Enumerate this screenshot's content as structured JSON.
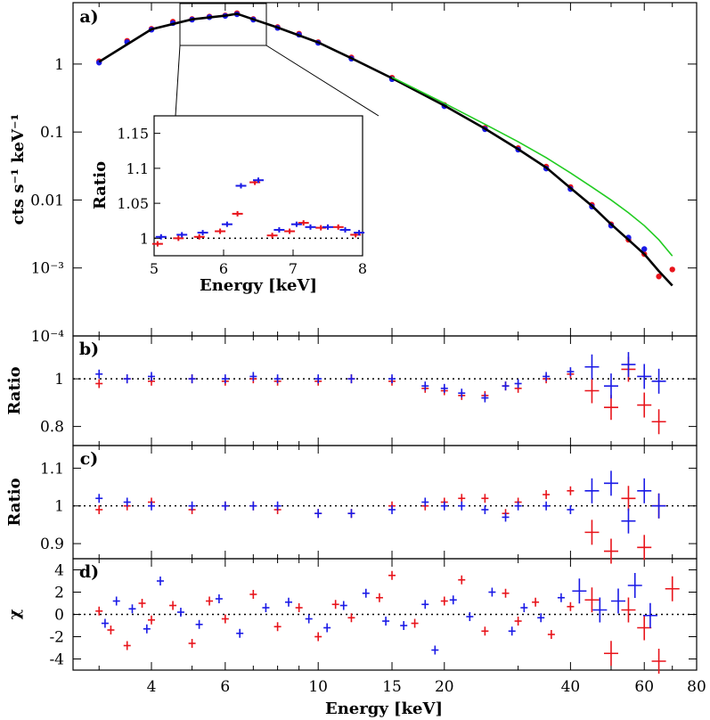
{
  "chart_data": [
    {
      "panel": "a)",
      "type": "scatter",
      "xlabel": "",
      "ylabel": "cts s⁻¹ keV⁻¹",
      "xscale": "log",
      "yscale": "log",
      "xlim": [
        2.6,
        80
      ],
      "ylim": [
        0.0001,
        8
      ],
      "ytick_labels": [
        "1",
        "0.1",
        "0.01",
        "10⁻³",
        "10⁻⁴"
      ],
      "ytick_values": [
        1,
        0.1,
        0.01,
        0.001,
        0.0001
      ],
      "series": [
        {
          "color": "#e8141b",
          "x": [
            3,
            3.5,
            4,
            4.5,
            5,
            5.5,
            6,
            6.4,
            7,
            8,
            9,
            10,
            12,
            15,
            20,
            25,
            30,
            35,
            40,
            45,
            50,
            55,
            60,
            65,
            70
          ],
          "y": [
            1.1,
            2.2,
            3.3,
            4.2,
            4.6,
            5.0,
            5.2,
            5.6,
            4.6,
            3.5,
            2.8,
            2.1,
            1.25,
            0.63,
            0.25,
            0.115,
            0.058,
            0.031,
            0.0155,
            0.0085,
            0.0044,
            0.0026,
            0.0016,
            0.00075,
            0.00095
          ]
        },
        {
          "color": "#1a1ae6",
          "x": [
            3,
            3.5,
            4,
            4.5,
            5,
            5.5,
            6,
            6.4,
            7,
            8,
            9,
            10,
            12,
            15,
            20,
            25,
            30,
            35,
            40,
            45,
            50,
            55,
            60
          ],
          "y": [
            1.05,
            2.1,
            3.2,
            4.0,
            4.5,
            4.9,
            5.1,
            5.4,
            4.5,
            3.4,
            2.7,
            2.05,
            1.2,
            0.6,
            0.24,
            0.11,
            0.055,
            0.029,
            0.0145,
            0.008,
            0.0042,
            0.0028,
            0.0019
          ]
        },
        {
          "color": "#000000",
          "kind": "model",
          "x": [
            3,
            4,
            5,
            6,
            6.4,
            7,
            8,
            10,
            12,
            15,
            20,
            25,
            30,
            35,
            40,
            45,
            50,
            55,
            60,
            65,
            70
          ],
          "y": [
            1.08,
            3.25,
            4.55,
            5.15,
            5.5,
            4.55,
            3.45,
            2.08,
            1.22,
            0.62,
            0.245,
            0.112,
            0.056,
            0.03,
            0.015,
            0.0082,
            0.0044,
            0.0026,
            0.0016,
            0.0009,
            0.00055
          ]
        },
        {
          "color": "#22cc22",
          "kind": "model",
          "x": [
            15,
            20,
            25,
            30,
            35,
            40,
            45,
            50,
            55,
            60,
            65,
            70
          ],
          "y": [
            0.64,
            0.265,
            0.13,
            0.072,
            0.042,
            0.025,
            0.0155,
            0.01,
            0.0065,
            0.0042,
            0.0026,
            0.0015
          ]
        }
      ]
    },
    {
      "panel": "inset",
      "type": "scatter",
      "xlabel": "Energy [keV]",
      "ylabel": "Ratio",
      "xlim": [
        5,
        8
      ],
      "ylim": [
        0.975,
        1.175
      ],
      "xtick_labels": [
        "5",
        "6",
        "7",
        "8"
      ],
      "ytick_labels": [
        "1",
        "1.05",
        "1.1",
        "1.15"
      ],
      "reference_line": 1,
      "series": [
        {
          "color": "#e8141b",
          "x": [
            5.05,
            5.35,
            5.65,
            5.95,
            6.2,
            6.45,
            6.7,
            6.95,
            7.15,
            7.4,
            7.65,
            7.9
          ],
          "y": [
            0.992,
            1.0,
            1.002,
            1.01,
            1.035,
            1.08,
            1.004,
            1.01,
            1.022,
            1.015,
            1.016,
            1.005
          ]
        },
        {
          "color": "#1a1ae6",
          "x": [
            5.1,
            5.4,
            5.7,
            6.05,
            6.25,
            6.5,
            6.8,
            7.05,
            7.25,
            7.5,
            7.75,
            7.95
          ],
          "y": [
            1.002,
            1.005,
            1.008,
            1.02,
            1.075,
            1.083,
            1.012,
            1.02,
            1.016,
            1.016,
            1.012,
            1.008
          ]
        }
      ]
    },
    {
      "panel": "b)",
      "type": "scatter",
      "xlabel": "",
      "ylabel": "Ratio",
      "xscale": "log",
      "xlim": [
        2.6,
        80
      ],
      "ylim": [
        0.72,
        1.18
      ],
      "ytick_labels": [
        "1",
        "0.8"
      ],
      "ytick_values": [
        1,
        0.8
      ],
      "reference_line": 1,
      "series": [
        {
          "color": "#e8141b",
          "x": [
            3,
            3.5,
            4,
            5,
            6,
            7,
            8,
            10,
            12,
            15,
            18,
            20,
            22,
            25,
            28,
            30,
            35,
            40,
            45,
            50,
            55,
            60,
            65
          ],
          "y": [
            0.98,
            1.0,
            0.99,
            1.0,
            0.99,
            1.0,
            0.99,
            0.99,
            1.0,
            0.99,
            0.96,
            0.95,
            0.93,
            0.93,
            0.97,
            0.96,
            1.0,
            1.02,
            0.95,
            0.88,
            1.04,
            0.89,
            0.82
          ]
        },
        {
          "color": "#1a1ae6",
          "x": [
            3,
            3.5,
            4,
            5,
            6,
            7,
            8,
            10,
            12,
            15,
            18,
            20,
            22,
            25,
            28,
            30,
            35,
            40,
            45,
            50,
            55,
            60,
            65
          ],
          "y": [
            1.02,
            1.0,
            1.01,
            1.0,
            1.0,
            1.01,
            1.0,
            1.0,
            1.0,
            1.0,
            0.97,
            0.96,
            0.94,
            0.92,
            0.97,
            0.98,
            1.01,
            1.03,
            1.05,
            0.97,
            1.06,
            1.01,
            0.99
          ]
        }
      ]
    },
    {
      "panel": "c)",
      "type": "scatter",
      "xlabel": "",
      "ylabel": "Ratio",
      "xscale": "log",
      "xlim": [
        2.6,
        80
      ],
      "ylim": [
        0.86,
        1.16
      ],
      "ytick_labels": [
        "1.1",
        "1",
        "0.9"
      ],
      "ytick_values": [
        1.1,
        1,
        0.9
      ],
      "reference_line": 1,
      "series": [
        {
          "color": "#e8141b",
          "x": [
            3,
            3.5,
            4,
            5,
            6,
            7,
            8,
            10,
            12,
            15,
            18,
            20,
            22,
            25,
            28,
            30,
            35,
            40,
            45,
            50,
            55,
            60,
            65
          ],
          "y": [
            0.99,
            1.0,
            1.01,
            0.99,
            1.0,
            1.0,
            0.99,
            0.98,
            0.98,
            1.0,
            1.0,
            1.01,
            1.02,
            1.02,
            0.98,
            1.01,
            1.03,
            1.04,
            0.93,
            0.88,
            1.02,
            0.89,
            1.0
          ]
        },
        {
          "color": "#1a1ae6",
          "x": [
            3,
            3.5,
            4,
            5,
            6,
            7,
            8,
            10,
            12,
            15,
            18,
            20,
            22,
            25,
            28,
            30,
            35,
            40,
            45,
            50,
            55,
            60,
            65
          ],
          "y": [
            1.02,
            1.01,
            1.0,
            1.0,
            1.0,
            1.0,
            1.0,
            0.98,
            0.98,
            0.99,
            1.01,
            1.0,
            1.0,
            0.99,
            0.97,
            1.0,
            1.0,
            0.99,
            1.04,
            1.06,
            0.96,
            1.04,
            1.0
          ]
        }
      ]
    },
    {
      "panel": "d)",
      "type": "scatter",
      "xlabel": "Energy [keV]",
      "ylabel": "χ",
      "xscale": "log",
      "xlim": [
        2.6,
        80
      ],
      "ylim": [
        -5,
        5
      ],
      "xtick_labels": [
        "4",
        "6",
        "10",
        "15",
        "20",
        "40",
        "60",
        "80"
      ],
      "xtick_values": [
        4,
        6,
        10,
        15,
        20,
        40,
        60,
        80
      ],
      "ytick_labels": [
        "4",
        "2",
        "0",
        "-2",
        "-4"
      ],
      "ytick_values": [
        4,
        2,
        0,
        -2,
        -4
      ],
      "reference_line": 0,
      "series": [
        {
          "color": "#e8141b",
          "x": [
            3,
            3.2,
            3.5,
            3.8,
            4,
            4.5,
            5,
            5.5,
            6,
            7,
            8,
            9,
            10,
            11,
            12,
            14,
            15,
            17,
            20,
            22,
            25,
            28,
            30,
            33,
            36,
            40,
            45,
            50,
            55,
            60,
            65,
            70
          ],
          "y": [
            0.3,
            -1.4,
            -2.8,
            1.0,
            -0.5,
            0.8,
            -2.6,
            1.2,
            -0.4,
            1.8,
            -1.1,
            0.6,
            -2.0,
            0.9,
            -0.3,
            1.5,
            3.5,
            -0.8,
            1.2,
            3.1,
            -1.5,
            1.9,
            -0.6,
            1.1,
            -1.8,
            0.7,
            1.3,
            -3.5,
            0.4,
            -1.2,
            -4.2,
            2.3
          ]
        },
        {
          "color": "#1a1ae6",
          "x": [
            3.1,
            3.3,
            3.6,
            3.9,
            4.2,
            4.7,
            5.2,
            5.8,
            6.5,
            7.5,
            8.5,
            9.5,
            10.5,
            11.5,
            13,
            14.5,
            16,
            18,
            19,
            21,
            23,
            26,
            29,
            31,
            34,
            38,
            42,
            47,
            52,
            57,
            62
          ],
          "y": [
            -0.8,
            1.2,
            0.5,
            -1.3,
            3.0,
            0.2,
            -0.9,
            1.4,
            -1.7,
            0.6,
            1.1,
            -0.4,
            -1.2,
            0.8,
            1.9,
            -0.6,
            -1.0,
            0.9,
            -3.2,
            1.3,
            -0.2,
            2.0,
            -1.5,
            0.6,
            -0.3,
            1.5,
            2.1,
            0.4,
            1.2,
            2.6,
            -0.1
          ]
        }
      ]
    }
  ]
}
